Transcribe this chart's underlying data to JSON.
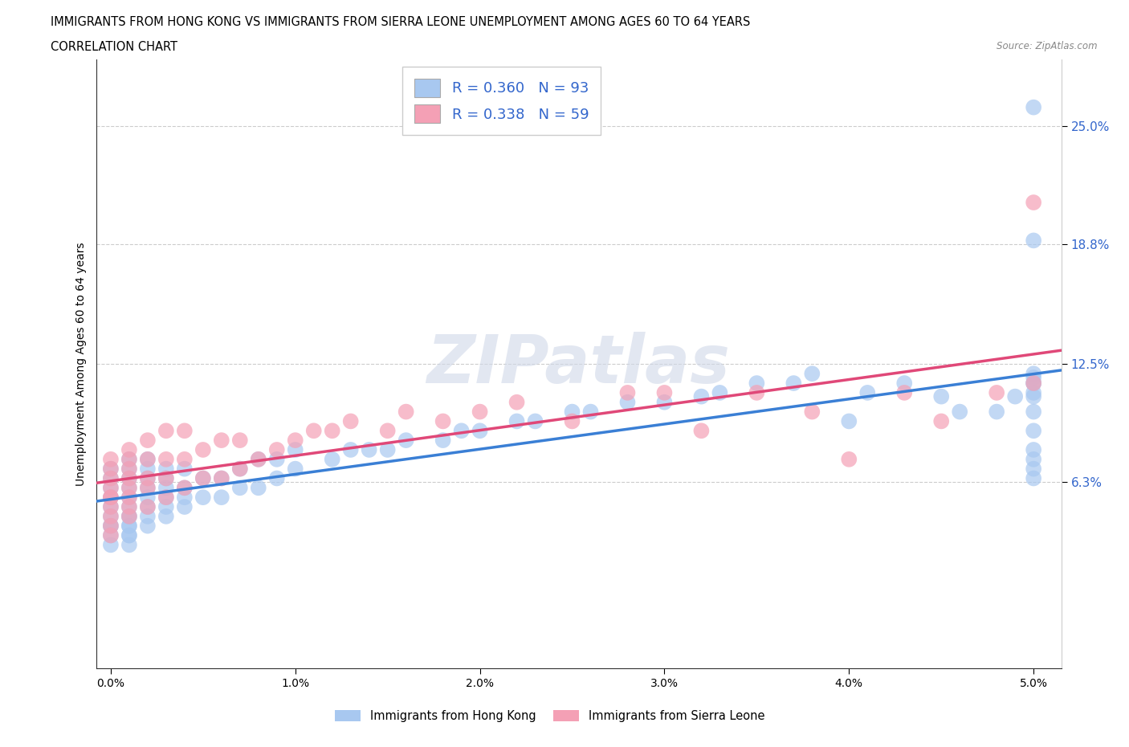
{
  "title_line1": "IMMIGRANTS FROM HONG KONG VS IMMIGRANTS FROM SIERRA LEONE UNEMPLOYMENT AMONG AGES 60 TO 64 YEARS",
  "title_line2": "CORRELATION CHART",
  "source_text": "Source: ZipAtlas.com",
  "ylabel": "Unemployment Among Ages 60 to 64 years",
  "xlim": [
    -0.0008,
    0.0515
  ],
  "ylim": [
    -0.035,
    0.285
  ],
  "yticks": [
    0.063,
    0.125,
    0.188,
    0.25
  ],
  "ytick_labels": [
    "6.3%",
    "12.5%",
    "18.8%",
    "25.0%"
  ],
  "xticks": [
    0.0,
    0.01,
    0.02,
    0.03,
    0.04,
    0.05
  ],
  "xtick_labels": [
    "0.0%",
    "1.0%",
    "2.0%",
    "3.0%",
    "4.0%",
    "5.0%"
  ],
  "hk_color": "#a8c8f0",
  "sl_color": "#f4a0b5",
  "hk_line_color": "#3a7fd5",
  "sl_line_color": "#e04878",
  "hk_R": 0.36,
  "hk_N": 93,
  "sl_R": 0.338,
  "sl_N": 59,
  "legend_label_hk": "Immigrants from Hong Kong",
  "legend_label_sl": "Immigrants from Sierra Leone",
  "hk_x": [
    0.0,
    0.0,
    0.0,
    0.0,
    0.0,
    0.0,
    0.0,
    0.0,
    0.0,
    0.0,
    0.001,
    0.001,
    0.001,
    0.001,
    0.001,
    0.001,
    0.001,
    0.001,
    0.001,
    0.001,
    0.001,
    0.001,
    0.001,
    0.002,
    0.002,
    0.002,
    0.002,
    0.002,
    0.002,
    0.002,
    0.002,
    0.003,
    0.003,
    0.003,
    0.003,
    0.003,
    0.003,
    0.004,
    0.004,
    0.004,
    0.004,
    0.005,
    0.005,
    0.006,
    0.006,
    0.007,
    0.007,
    0.008,
    0.008,
    0.009,
    0.009,
    0.01,
    0.01,
    0.012,
    0.013,
    0.014,
    0.015,
    0.016,
    0.018,
    0.019,
    0.02,
    0.022,
    0.023,
    0.025,
    0.026,
    0.028,
    0.03,
    0.032,
    0.033,
    0.035,
    0.037,
    0.038,
    0.04,
    0.041,
    0.043,
    0.045,
    0.046,
    0.048,
    0.049,
    0.05,
    0.05,
    0.05,
    0.05,
    0.05,
    0.05,
    0.05,
    0.05,
    0.05,
    0.05,
    0.05,
    0.05,
    0.05,
    0.05
  ],
  "hk_y": [
    0.04,
    0.05,
    0.055,
    0.06,
    0.065,
    0.07,
    0.04,
    0.045,
    0.03,
    0.035,
    0.035,
    0.04,
    0.045,
    0.05,
    0.055,
    0.06,
    0.065,
    0.07,
    0.075,
    0.03,
    0.035,
    0.04,
    0.045,
    0.04,
    0.045,
    0.05,
    0.055,
    0.06,
    0.065,
    0.07,
    0.075,
    0.045,
    0.05,
    0.055,
    0.06,
    0.065,
    0.07,
    0.05,
    0.055,
    0.06,
    0.07,
    0.055,
    0.065,
    0.055,
    0.065,
    0.06,
    0.07,
    0.06,
    0.075,
    0.065,
    0.075,
    0.07,
    0.08,
    0.075,
    0.08,
    0.08,
    0.08,
    0.085,
    0.085,
    0.09,
    0.09,
    0.095,
    0.095,
    0.1,
    0.1,
    0.105,
    0.105,
    0.108,
    0.11,
    0.115,
    0.115,
    0.12,
    0.095,
    0.11,
    0.115,
    0.108,
    0.1,
    0.1,
    0.108,
    0.065,
    0.075,
    0.08,
    0.09,
    0.1,
    0.108,
    0.115,
    0.118,
    0.12,
    0.11,
    0.19,
    0.07,
    0.115,
    0.26
  ],
  "sl_x": [
    0.0,
    0.0,
    0.0,
    0.0,
    0.0,
    0.0,
    0.0,
    0.0,
    0.0,
    0.0,
    0.001,
    0.001,
    0.001,
    0.001,
    0.001,
    0.001,
    0.001,
    0.001,
    0.002,
    0.002,
    0.002,
    0.002,
    0.002,
    0.003,
    0.003,
    0.003,
    0.003,
    0.004,
    0.004,
    0.004,
    0.005,
    0.005,
    0.006,
    0.006,
    0.007,
    0.007,
    0.008,
    0.009,
    0.01,
    0.011,
    0.012,
    0.013,
    0.015,
    0.016,
    0.018,
    0.02,
    0.022,
    0.025,
    0.028,
    0.03,
    0.032,
    0.035,
    0.038,
    0.04,
    0.043,
    0.045,
    0.048,
    0.05,
    0.05
  ],
  "sl_y": [
    0.04,
    0.045,
    0.055,
    0.06,
    0.065,
    0.07,
    0.075,
    0.05,
    0.035,
    0.055,
    0.045,
    0.055,
    0.06,
    0.065,
    0.07,
    0.075,
    0.08,
    0.05,
    0.05,
    0.06,
    0.065,
    0.075,
    0.085,
    0.055,
    0.065,
    0.075,
    0.09,
    0.06,
    0.075,
    0.09,
    0.065,
    0.08,
    0.065,
    0.085,
    0.07,
    0.085,
    0.075,
    0.08,
    0.085,
    0.09,
    0.09,
    0.095,
    0.09,
    0.1,
    0.095,
    0.1,
    0.105,
    0.095,
    0.11,
    0.11,
    0.09,
    0.11,
    0.1,
    0.075,
    0.11,
    0.095,
    0.11,
    0.115,
    0.21
  ]
}
